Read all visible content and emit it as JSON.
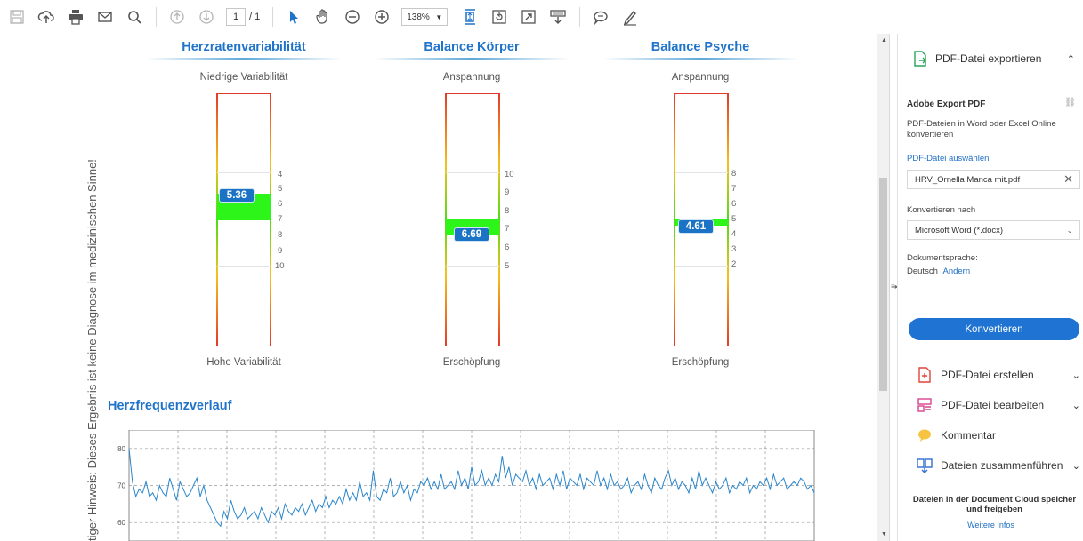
{
  "toolbar": {
    "page_current": "1",
    "page_total": "/ 1",
    "zoom": "138%"
  },
  "document": {
    "vertical_note": "tiger Hinweis: Dieses Ergebnis ist keine Diagnose im medizinischen Sinne!",
    "gauges": [
      {
        "title": "Herzratenvariabilität",
        "top_label": "Niedrige Variabilität",
        "bottom_label": "Hohe Variabilität",
        "value": "5.36",
        "ticks": [
          "4",
          "5",
          "6",
          "7",
          "8",
          "9",
          "10"
        ]
      },
      {
        "title": "Balance Körper",
        "top_label": "Anspannung",
        "bottom_label": "Erschöpfung",
        "value": "6.69",
        "ticks": [
          "10",
          "9",
          "8",
          "7",
          "6",
          "5"
        ]
      },
      {
        "title": "Balance Psyche",
        "top_label": "Anspannung",
        "bottom_label": "Erschöpfung",
        "value": "4.61",
        "ticks": [
          "8",
          "7",
          "6",
          "5",
          "4",
          "3",
          "2"
        ]
      }
    ],
    "heart_rate_title": "Herzfrequenzverlauf"
  },
  "chart_data": {
    "type": "line",
    "title": "Herzfrequenzverlauf",
    "yticks": [
      "80",
      "70",
      "60"
    ],
    "ylim": [
      55,
      85
    ],
    "grid": true,
    "series": [
      {
        "values": [
          80,
          71,
          67,
          69,
          68,
          71,
          67,
          68,
          66,
          70,
          68,
          67,
          72,
          69,
          66,
          71,
          69,
          67,
          68,
          70,
          72,
          67,
          70,
          66,
          64,
          62,
          60,
          59,
          63,
          61,
          66,
          63,
          61,
          62,
          64,
          61,
          62,
          63,
          61,
          64,
          62,
          60,
          63,
          62,
          64,
          61,
          65,
          63,
          62,
          64,
          63,
          65,
          62,
          64,
          66,
          63,
          65,
          64,
          67,
          64,
          66,
          65,
          67,
          65,
          69,
          66,
          68,
          66,
          71,
          67,
          68,
          66,
          74,
          67,
          66,
          69,
          68,
          72,
          67,
          68,
          71,
          68,
          70,
          66,
          69,
          68,
          71,
          70,
          72,
          69,
          71,
          69,
          73,
          69,
          70,
          71,
          69,
          74,
          70,
          72,
          69,
          75,
          70,
          71,
          74,
          70,
          72,
          70,
          73,
          71,
          78,
          72,
          75,
          70,
          73,
          72,
          71,
          74,
          70,
          72,
          69,
          73,
          70,
          71,
          72,
          69,
          73,
          70,
          74,
          69,
          72,
          71,
          70,
          73,
          69,
          72,
          71,
          70,
          74,
          70,
          72,
          69,
          73,
          70,
          71,
          69,
          70,
          72,
          68,
          70,
          71,
          69,
          73,
          70,
          68,
          72,
          70,
          69,
          72,
          74,
          70,
          72,
          69,
          71,
          70,
          68,
          72,
          69,
          74,
          70,
          72,
          70,
          68,
          71,
          69,
          70,
          72,
          68,
          70,
          69,
          71,
          70,
          72,
          68,
          70,
          69,
          71,
          70,
          72,
          69,
          73,
          70,
          71,
          72,
          69,
          70,
          71,
          70,
          72,
          71,
          69,
          70,
          68
        ]
      }
    ]
  },
  "panel": {
    "export_title": "PDF-Datei exportieren",
    "adobe_export": "Adobe Export PDF",
    "adobe_desc": "PDF-Dateien in Word oder Excel Online konvertieren",
    "select_file": "PDF-Datei auswählen",
    "file_name": "HRV_Ornella Manca mit.pdf",
    "convert_to_label": "Konvertieren nach",
    "convert_to_value": "Microsoft Word (*.docx)",
    "doc_lang_label": "Dokumentsprache:",
    "doc_lang_value": "Deutsch",
    "change_link": "Ändern",
    "convert_button": "Konvertieren",
    "tools": [
      {
        "label": "PDF-Datei erstellen"
      },
      {
        "label": "PDF-Datei bearbeiten"
      },
      {
        "label": "Kommentar"
      },
      {
        "label": "Dateien zusammenführen"
      }
    ],
    "cloud_text": "Dateien in der Document Cloud speicher und freigeben",
    "more_info": "Weitere Infos"
  }
}
